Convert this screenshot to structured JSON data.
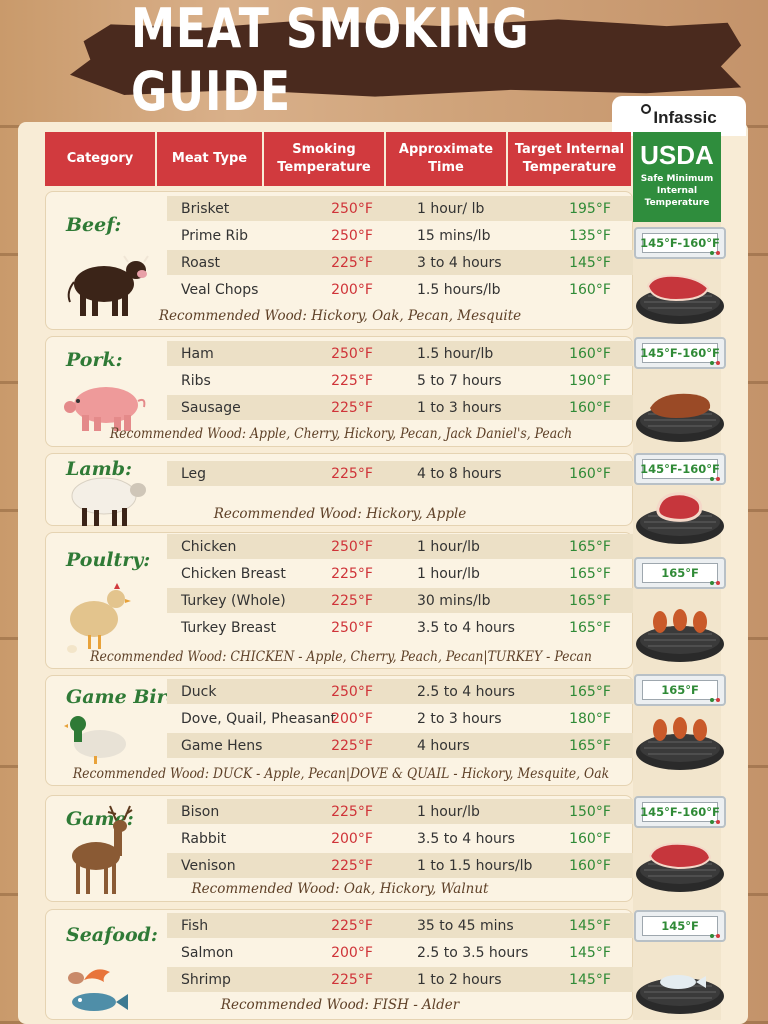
{
  "title": "MEAT SMOKING GUIDE",
  "brand": "Infassic",
  "headers": {
    "category": "Category",
    "meat_type": "Meat Type",
    "smoking_temp": "Smoking Temperature",
    "approx_time": "Approximate Time",
    "target_temp": "Target Internal Temperature"
  },
  "usda": {
    "title": "USDA",
    "subtitle": "Safe Minimum Internal Temperature"
  },
  "colors": {
    "red": "#d13a3e",
    "green": "#2f8d3d",
    "brown": "#4a2a1e",
    "cream": "#f8ecd6"
  },
  "sections": [
    {
      "category": "Beef:",
      "icon": "cow-icon",
      "rows": [
        {
          "meat": "Brisket",
          "smoke": "250°F",
          "time": "1 hour/ lb",
          "target": "195°F"
        },
        {
          "meat": "Prime Rib",
          "smoke": "250°F",
          "time": "15 mins/lb",
          "target": "135°F"
        },
        {
          "meat": "Roast",
          "smoke": "225°F",
          "time": "3 to 4 hours",
          "target": "145°F"
        },
        {
          "meat": "Veal Chops",
          "smoke": "200°F",
          "time": "1.5 hours/lb",
          "target": "160°F"
        }
      ],
      "wood": "Recommended Wood: Hickory, Oak, Pecan, Mesquite",
      "usda_temp": "145°F-160°F"
    },
    {
      "category": "Pork:",
      "icon": "pig-icon",
      "rows": [
        {
          "meat": "Ham",
          "smoke": "250°F",
          "time": "1.5 hour/lb",
          "target": "160°F"
        },
        {
          "meat": "Ribs",
          "smoke": "225°F",
          "time": "5 to 7 hours",
          "target": "190°F"
        },
        {
          "meat": "Sausage",
          "smoke": "225°F",
          "time": "1 to 3 hours",
          "target": "160°F"
        }
      ],
      "wood": "Recommended Wood: Apple, Cherry, Hickory, Pecan, Jack Daniel's, Peach",
      "usda_temp": "145°F-160°F"
    },
    {
      "category": "Lamb:",
      "icon": "sheep-icon",
      "rows": [
        {
          "meat": "Leg",
          "smoke": "225°F",
          "time": "4 to 8 hours",
          "target": "160°F"
        }
      ],
      "wood": "Recommended Wood: Hickory, Apple",
      "usda_temp": "145°F-160°F"
    },
    {
      "category": "Poultry:",
      "icon": "chicken-icon",
      "rows": [
        {
          "meat": "Chicken",
          "smoke": "250°F",
          "time": "1 hour/lb",
          "target": "165°F"
        },
        {
          "meat": "Chicken Breast",
          "smoke": "225°F",
          "time": "1 hour/lb",
          "target": "165°F"
        },
        {
          "meat": "Turkey (Whole)",
          "smoke": "225°F",
          "time": "30 mins/lb",
          "target": "165°F"
        },
        {
          "meat": "Turkey Breast",
          "smoke": "250°F",
          "time": "3.5 to 4 hours",
          "target": "165°F"
        }
      ],
      "wood": "Recommended Wood: CHICKEN - Apple, Cherry, Peach, Pecan|TURKEY - Pecan",
      "usda_temp": "165°F"
    },
    {
      "category": "Game Birds:",
      "icon": "duck-icon",
      "rows": [
        {
          "meat": "Duck",
          "smoke": "250°F",
          "time": "2.5 to 4 hours",
          "target": "165°F"
        },
        {
          "meat": "Dove, Quail, Pheasant",
          "smoke": "200°F",
          "time": "2 to 3 hours",
          "target": "180°F"
        },
        {
          "meat": "Game Hens",
          "smoke": "225°F",
          "time": "4 hours",
          "target": "165°F"
        }
      ],
      "wood": "Recommended Wood: DUCK - Apple, Pecan|DOVE & QUAIL - Hickory, Mesquite, Oak",
      "usda_temp": "165°F"
    },
    {
      "category": "Game:",
      "icon": "deer-icon",
      "rows": [
        {
          "meat": "Bison",
          "smoke": "225°F",
          "time": "1 hour/lb",
          "target": "150°F"
        },
        {
          "meat": "Rabbit",
          "smoke": "200°F",
          "time": "3.5 to 4 hours",
          "target": "160°F"
        },
        {
          "meat": "Venison",
          "smoke": "225°F",
          "time": "1 to 1.5 hours/lb",
          "target": "160°F"
        }
      ],
      "wood": "Recommended Wood: Oak, Hickory, Walnut",
      "usda_temp": "145°F-160°F"
    },
    {
      "category": "Seafood:",
      "icon": "seafood-icon",
      "rows": [
        {
          "meat": "Fish",
          "smoke": "225°F",
          "time": "35 to 45 mins",
          "target": "145°F"
        },
        {
          "meat": "Salmon",
          "smoke": "200°F",
          "time": "2.5 to 3.5 hours",
          "target": "145°F"
        },
        {
          "meat": "Shrimp",
          "smoke": "225°F",
          "time": "1 to 2 hours",
          "target": "145°F"
        }
      ],
      "wood": "Recommended Wood: FISH - Alder",
      "usda_temp": "145°F"
    }
  ]
}
